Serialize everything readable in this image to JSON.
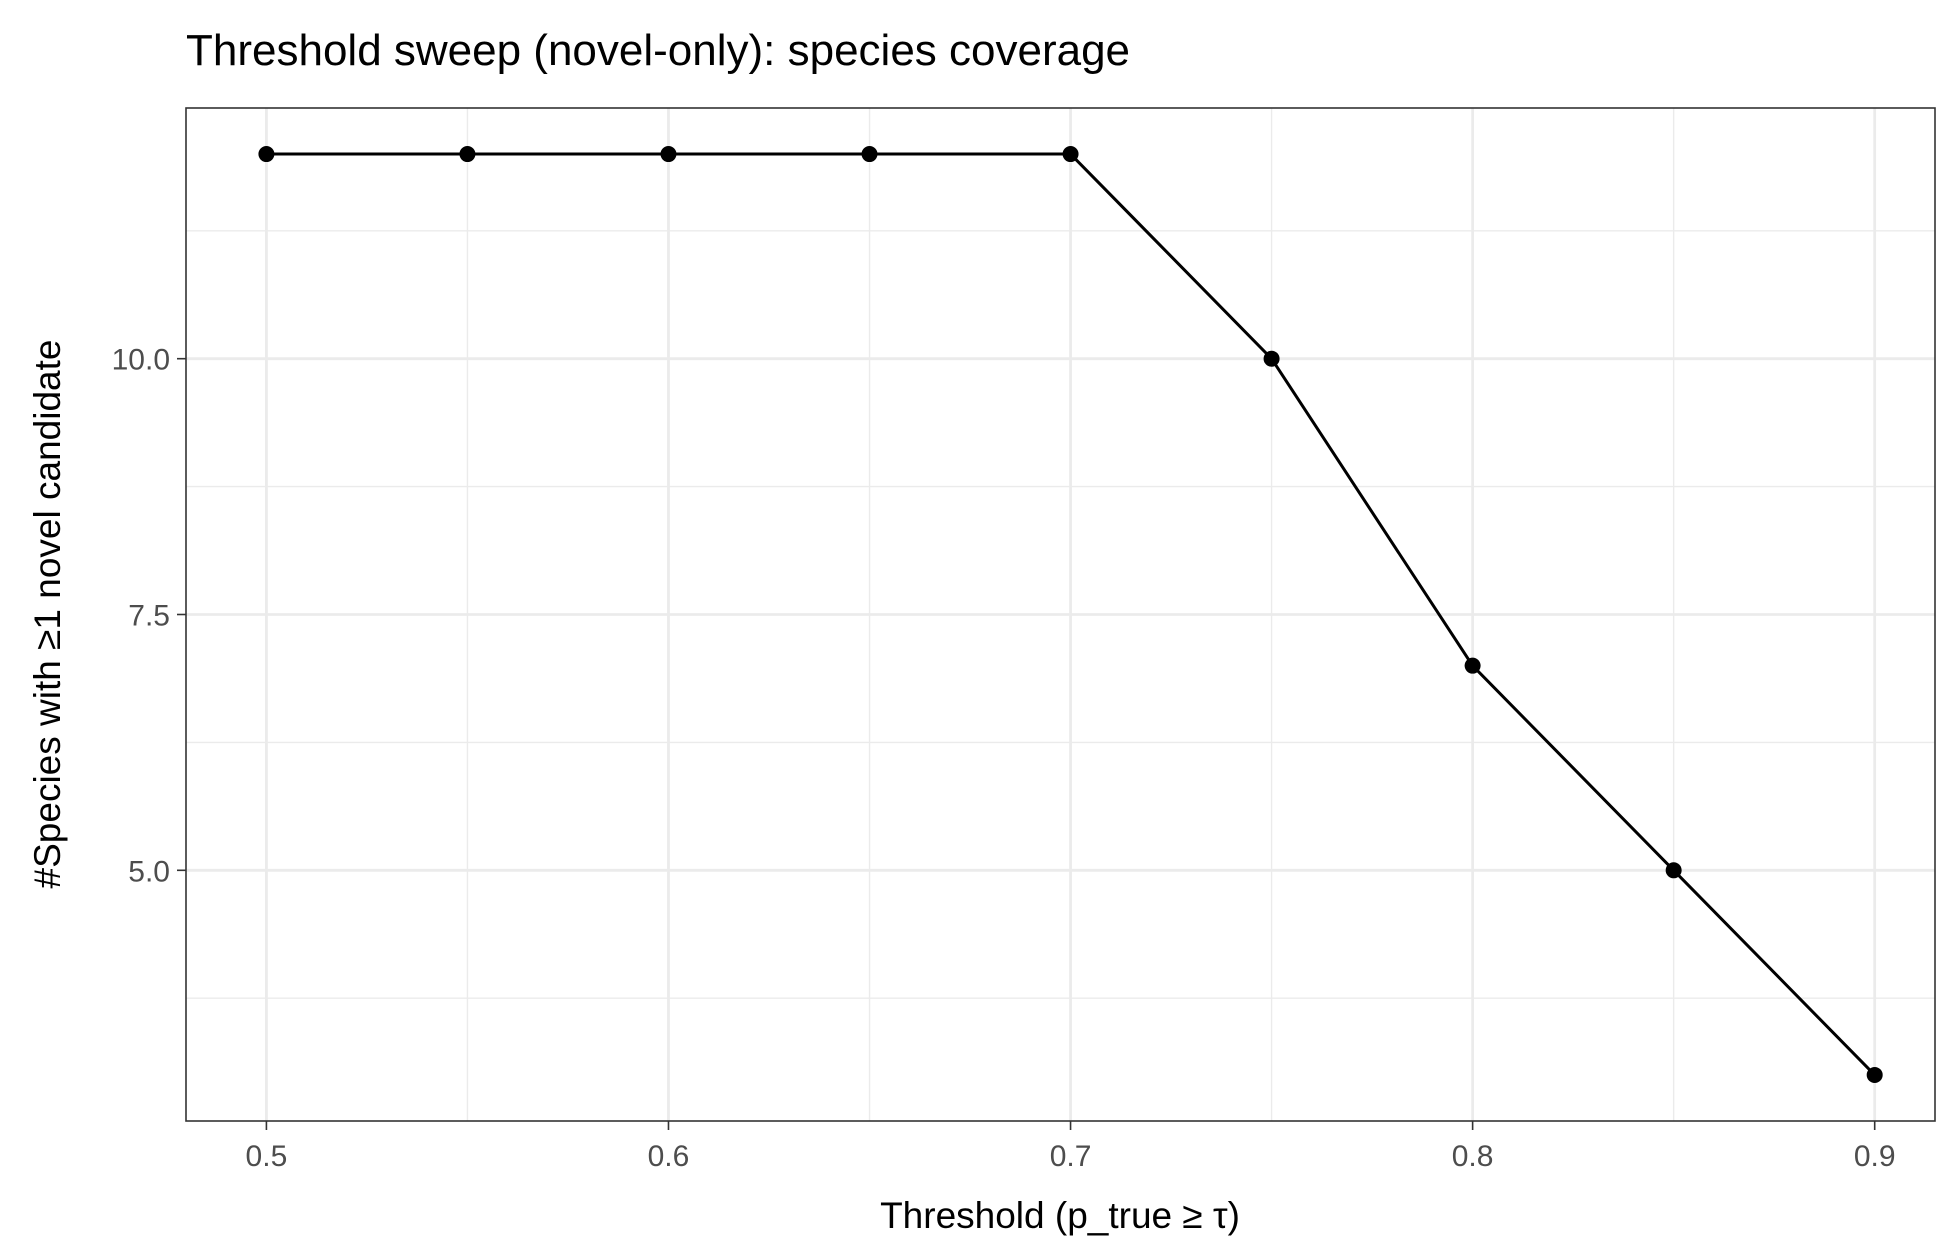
{
  "chart_data": {
    "type": "line",
    "title": "Threshold sweep (novel-only): species coverage",
    "xlabel": "Threshold (p_true ≥ τ)",
    "ylabel": "#Species with ≥1 novel candidate",
    "x": [
      0.5,
      0.55,
      0.6,
      0.65,
      0.7,
      0.75,
      0.8,
      0.85,
      0.9
    ],
    "series": [
      {
        "values": [
          12,
          12,
          12,
          12,
          12,
          10,
          7,
          5,
          3
        ],
        "color": "#000000"
      }
    ],
    "xlim": [
      0.48,
      0.915
    ],
    "ylim": [
      2.55,
      12.45
    ],
    "x_ticks": [
      0.5,
      0.6,
      0.7,
      0.8,
      0.9
    ],
    "x_tick_labels": [
      "0.5",
      "0.6",
      "0.7",
      "0.8",
      "0.9"
    ],
    "x_minor_ticks": [
      0.55,
      0.65,
      0.75,
      0.85
    ],
    "y_ticks": [
      5.0,
      7.5,
      10.0
    ],
    "y_tick_labels": [
      "5.0",
      "7.5",
      "10.0"
    ],
    "y_minor_ticks": [
      3.75,
      6.25,
      8.75,
      11.25
    ],
    "grid": true,
    "legend": "none",
    "colors": {
      "panel_border": "#333333",
      "grid": "#ebebeb",
      "tick_label": "#4d4d4d",
      "line": "#000000"
    }
  }
}
